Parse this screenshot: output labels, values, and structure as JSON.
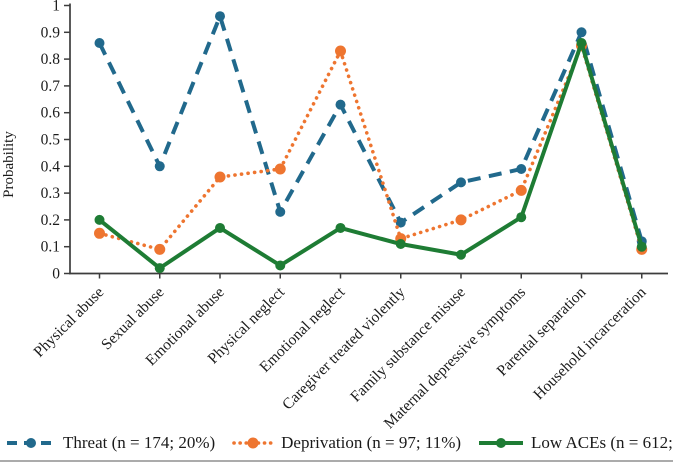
{
  "chart_data": {
    "type": "line",
    "title": "",
    "xlabel": "",
    "ylabel": "Probability",
    "ylim": [
      0,
      1
    ],
    "ytick_labels": [
      "0",
      "0.1",
      "0.2",
      "0.3",
      "0.4",
      "0.5",
      "0.6",
      "0.7",
      "0.8",
      "0.9",
      "1"
    ],
    "grid": false,
    "legend_position": "bottom",
    "categories": [
      "Physical abuse",
      "Sexual abuse",
      "Emotional abuse",
      "Physical neglect",
      "Emotional neglect",
      "Caregiver treated violently",
      "Family substance misuse",
      "Maternal depressive symptoms",
      "Parental separation",
      "Household incarceration"
    ],
    "series": [
      {
        "name": "Threat",
        "legend_label": "Threat (n = 174; 20%)",
        "color": "#21698C",
        "line_style": "dashed",
        "marker": "circle",
        "values": [
          0.86,
          0.4,
          0.96,
          0.23,
          0.63,
          0.19,
          0.34,
          0.39,
          0.9,
          0.12
        ]
      },
      {
        "name": "Deprivation",
        "legend_label": "Deprivation (n = 97; 11%)",
        "color": "#EE7530",
        "line_style": "dotted",
        "marker": "circle",
        "values": [
          0.15,
          0.09,
          0.36,
          0.39,
          0.83,
          0.13,
          0.2,
          0.31,
          0.85,
          0.09
        ]
      },
      {
        "name": "Low ACEs",
        "legend_label": "Low ACEs (n = 612; 69%)",
        "color": "#1E7C34",
        "line_style": "solid",
        "marker": "circle",
        "values": [
          0.2,
          0.02,
          0.17,
          0.03,
          0.17,
          0.11,
          0.07,
          0.21,
          0.86,
          0.1
        ]
      }
    ]
  },
  "colors": {
    "axis": "#3d3d3d",
    "text": "#1c1c1c",
    "bottom_rule": "#ababab"
  }
}
